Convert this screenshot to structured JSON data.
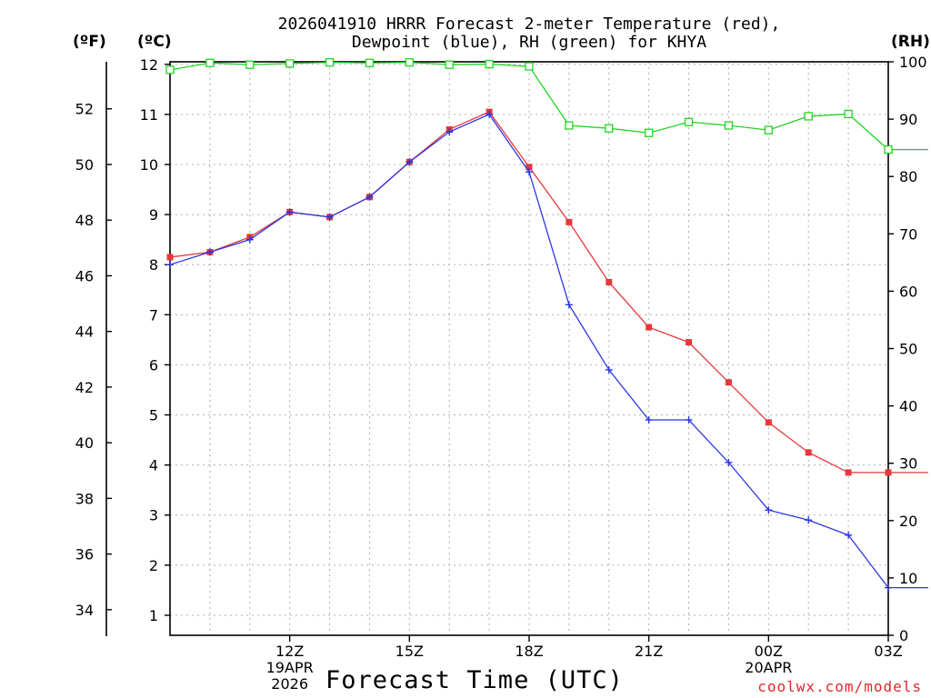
{
  "title_line1": "2026041910 HRRR Forecast 2-meter Temperature (red),",
  "title_line2": "Dewpoint (blue), RH (green) for KHYA",
  "unit_f": "(ºF)",
  "unit_c": "(ºC)",
  "unit_rh": "(RH)",
  "x_title": "Forecast Time (UTC)",
  "credit": "coolwx.com/models",
  "colors": {
    "temperature": "#e8373b",
    "dewpoint": "#2b35e6",
    "rh": "#22d422"
  },
  "chart_data": {
    "type": "line",
    "title": "2026041910 HRRR Forecast 2-meter Temperature (red), Dewpoint (blue), RH (green) for KHYA",
    "xlabel": "Forecast Time (UTC)",
    "x_hours_from_10Z": [
      -1,
      0,
      1,
      2,
      3,
      4,
      5,
      6,
      7,
      8,
      9,
      10,
      11,
      12,
      13,
      14,
      15,
      16,
      17,
      18
    ],
    "x_ticks": [
      {
        "hour": 2,
        "labels": [
          "12Z",
          "19APR",
          "2026"
        ]
      },
      {
        "hour": 5,
        "labels": [
          "15Z"
        ]
      },
      {
        "hour": 8,
        "labels": [
          "18Z"
        ]
      },
      {
        "hour": 11,
        "labels": [
          "21Z"
        ]
      },
      {
        "hour": 14,
        "labels": [
          "00Z",
          "20APR"
        ]
      },
      {
        "hour": 17,
        "labels": [
          "03Z"
        ]
      }
    ],
    "y_left_c": {
      "label": "°C",
      "range": [
        0.6,
        12.05
      ],
      "ticks": [
        1,
        2,
        3,
        4,
        5,
        6,
        7,
        8,
        9,
        10,
        11,
        12
      ]
    },
    "y_left_f": {
      "label": "°F",
      "ticks": [
        34,
        36,
        38,
        40,
        42,
        44,
        46,
        48,
        50,
        52
      ]
    },
    "y_right_rh": {
      "label": "RH",
      "range": [
        0,
        100
      ],
      "ticks": [
        0,
        10,
        20,
        30,
        40,
        50,
        60,
        70,
        80,
        90,
        100
      ]
    },
    "series": [
      {
        "name": "Temperature (°C)",
        "axis": "celsius",
        "marker": "filled-square",
        "values": [
          8.15,
          8.25,
          8.55,
          9.05,
          8.95,
          9.35,
          10.05,
          10.7,
          11.05,
          9.95,
          8.85,
          7.65,
          6.75,
          6.45,
          5.65,
          4.85,
          4.25,
          3.85,
          3.85,
          3.85
        ]
      },
      {
        "name": "Dewpoint (°C)",
        "axis": "celsius",
        "marker": "plus",
        "values": [
          8.0,
          8.25,
          8.5,
          9.05,
          8.95,
          9.35,
          10.05,
          10.65,
          11.0,
          9.85,
          7.2,
          5.9,
          4.9,
          4.9,
          4.05,
          3.1,
          2.9,
          2.6,
          1.55,
          1.55
        ]
      },
      {
        "name": "RH (%)",
        "axis": "rh",
        "marker": "open-square",
        "values": [
          98.6,
          99.8,
          99.5,
          99.7,
          99.9,
          99.8,
          99.9,
          99.5,
          99.6,
          99.2,
          88.9,
          88.4,
          87.6,
          89.5,
          88.9,
          88.1,
          90.5,
          90.9,
          84.7,
          84.7
        ]
      }
    ]
  }
}
